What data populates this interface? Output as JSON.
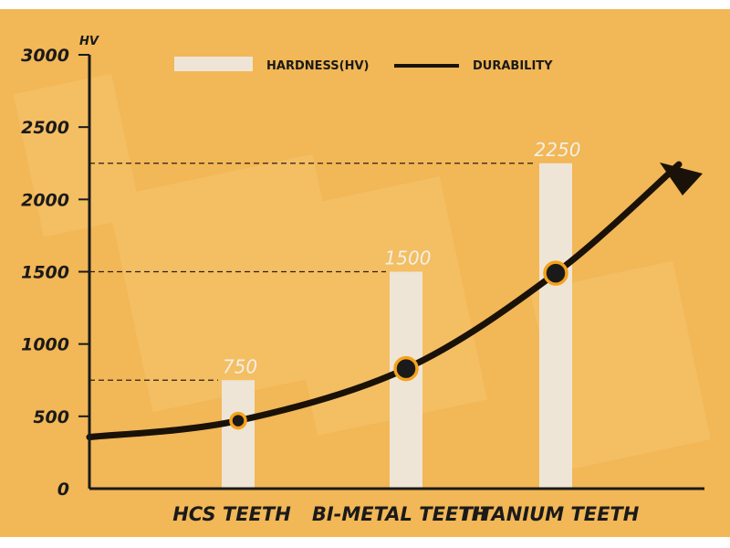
{
  "chart_data": {
    "type": "bar",
    "unit": "HV",
    "categories": [
      "HCS TEETH",
      "BI-METAL TEETH",
      "TITANIUM TEETH"
    ],
    "series": [
      {
        "name": "HARDNESS(HV)",
        "type": "bar",
        "values": [
          750,
          1500,
          2250
        ]
      },
      {
        "name": "DURABILITY",
        "type": "line",
        "values": [
          470,
          830,
          1490
        ]
      }
    ],
    "value_labels": [
      "750",
      "1500",
      "2250"
    ],
    "yticks": [
      0,
      500,
      1000,
      1500,
      2000,
      2500,
      3000
    ],
    "ytick_labels": [
      "0",
      "500",
      "1000",
      "1500",
      "2000",
      "2500",
      "3000"
    ],
    "ylim": [
      0,
      3000
    ],
    "legend": [
      "HARDNESS(HV)",
      "DURABILITY"
    ],
    "legend_position": "top",
    "colors": {
      "background": "#f2b756",
      "bar": "#efe5d6",
      "line": "#1a1208",
      "marker_ring": "#f6a21a",
      "axis": "#1a1a1a"
    }
  }
}
